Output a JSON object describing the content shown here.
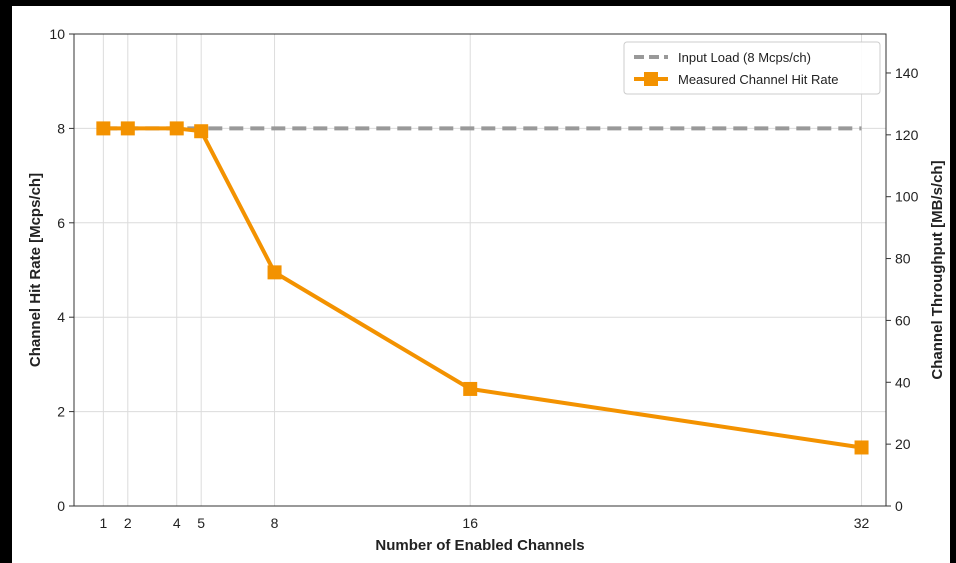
{
  "chart_data": {
    "type": "line",
    "xlabel": "Number of Enabled Channels",
    "ylabel": "Channel Hit Rate [Mcps/ch]",
    "ylabel_right": "Channel Throughput [MB/s/ch]",
    "x_ticks": [
      1,
      2,
      4,
      5,
      8,
      16,
      32
    ],
    "xlim": [
      -0.2,
      33
    ],
    "ylim": [
      0,
      10
    ],
    "y_ticks": [
      0,
      2,
      4,
      6,
      8,
      10
    ],
    "ylim_right": [
      0,
      152.6
    ],
    "y_ticks_right": [
      0,
      20,
      40,
      60,
      80,
      100,
      120,
      140
    ],
    "grid": true,
    "legend_position": "top-right",
    "series": [
      {
        "name": "Input Load (8 Mcps/ch)",
        "style": "dashed",
        "color": "#999999",
        "x": [
          1,
          2,
          4,
          5,
          8,
          16,
          32
        ],
        "values": [
          8,
          8,
          8,
          8,
          8,
          8,
          8
        ]
      },
      {
        "name": "Measured Channel Hit Rate",
        "style": "solid-square-markers",
        "color": "#F39200",
        "x": [
          1,
          2,
          4,
          5,
          8,
          16,
          32
        ],
        "values": [
          8.0,
          8.0,
          8.0,
          7.94,
          4.95,
          2.48,
          1.24
        ]
      }
    ]
  }
}
